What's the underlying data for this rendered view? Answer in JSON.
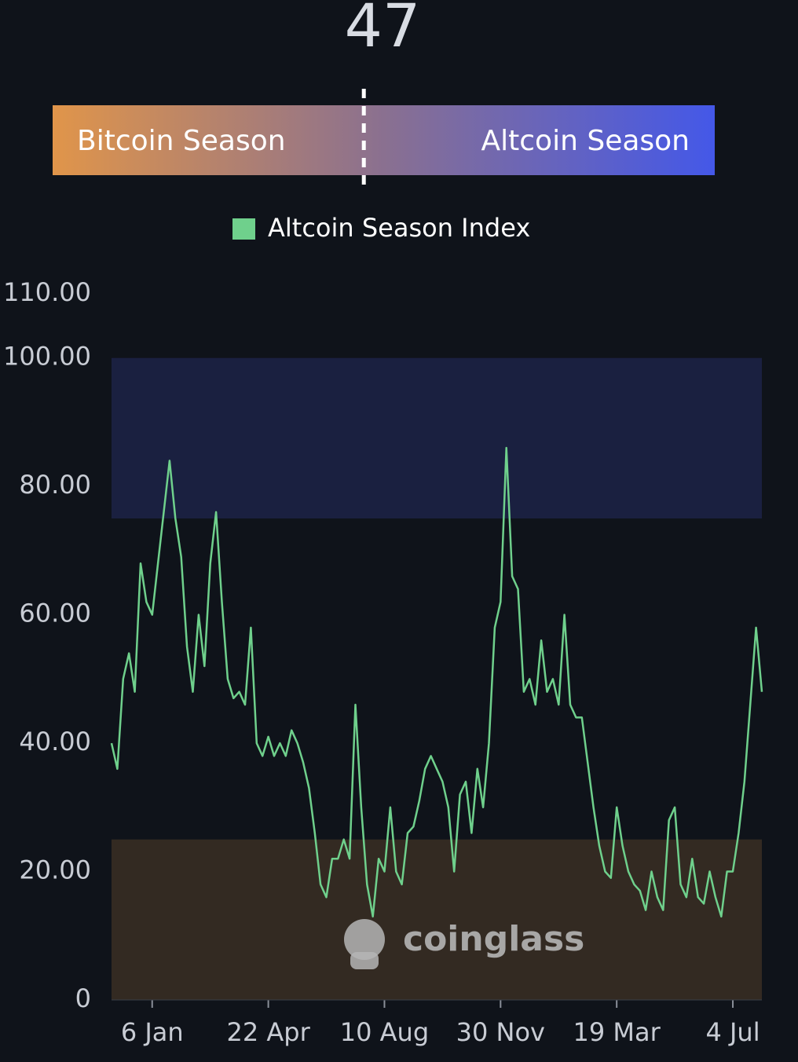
{
  "current_value": "47",
  "gauge": {
    "left_label": "Bitcoin Season",
    "right_label": "Altcoin Season"
  },
  "watermark": "coinglass",
  "chart_data": {
    "type": "line",
    "categories": [
      null,
      null,
      null,
      null,
      null,
      null,
      null,
      "6 Jan",
      null,
      null,
      null,
      null,
      null,
      null,
      null,
      null,
      null,
      null,
      null,
      null,
      null,
      null,
      null,
      null,
      null,
      null,
      null,
      "22 Apr",
      null,
      null,
      null,
      null,
      null,
      null,
      null,
      null,
      null,
      null,
      null,
      null,
      null,
      null,
      null,
      null,
      null,
      null,
      null,
      "10 Aug",
      null,
      null,
      null,
      null,
      null,
      null,
      null,
      null,
      null,
      null,
      null,
      null,
      null,
      null,
      null,
      null,
      null,
      null,
      null,
      "30 Nov",
      null,
      null,
      null,
      null,
      null,
      null,
      null,
      null,
      null,
      null,
      null,
      null,
      null,
      null,
      null,
      null,
      null,
      null,
      null,
      "19 Mar",
      null,
      null,
      null,
      null,
      null,
      null,
      null,
      null,
      null,
      null,
      null,
      null,
      null,
      null,
      null,
      null,
      null,
      null,
      null,
      "4 Jul",
      null,
      null,
      null,
      null,
      null
    ],
    "series": [
      {
        "name": "Altcoin Season Index",
        "color": "#6fd08c",
        "values": [
          40,
          36,
          50,
          54,
          48,
          68,
          62,
          60,
          68,
          76,
          84,
          75,
          69,
          55,
          48,
          60,
          52,
          68,
          76,
          62,
          50,
          47,
          48,
          46,
          58,
          40,
          38,
          41,
          38,
          40,
          38,
          42,
          40,
          37,
          33,
          26,
          18,
          16,
          22,
          22,
          25,
          22,
          46,
          30,
          18,
          13,
          22,
          20,
          30,
          20,
          18,
          26,
          27,
          31,
          36,
          38,
          36,
          34,
          30,
          20,
          32,
          34,
          26,
          36,
          30,
          40,
          58,
          62,
          86,
          66,
          64,
          48,
          50,
          46,
          56,
          48,
          50,
          46,
          60,
          46,
          44,
          44,
          37,
          30,
          24,
          20,
          19,
          30,
          24,
          20,
          18,
          17,
          14,
          20,
          16,
          14,
          28,
          30,
          18,
          16,
          22,
          16,
          15,
          20,
          16,
          13,
          20,
          20,
          26,
          34,
          46,
          58,
          48
        ]
      }
    ],
    "ylim": [
      0,
      110
    ],
    "yticks": [
      0,
      {
        "value": 20,
        "label": "20.00"
      },
      {
        "value": 40,
        "label": "40.00"
      },
      {
        "value": 60,
        "label": "60.00"
      },
      {
        "value": 80,
        "label": "80.00"
      },
      {
        "value": 100,
        "label": "100.00"
      },
      {
        "value": 110,
        "label": "110.00"
      }
    ],
    "bands": [
      {
        "from": 75,
        "to": 100,
        "color": "#1a2040"
      },
      {
        "from": 0,
        "to": 25,
        "color": "#332a22"
      }
    ],
    "legend": "top"
  }
}
